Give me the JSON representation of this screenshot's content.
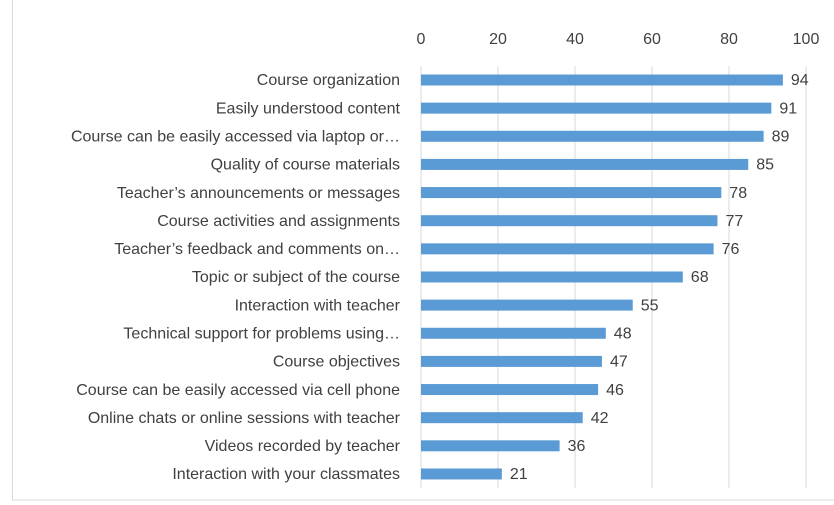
{
  "chart_data": {
    "type": "bar",
    "orientation": "horizontal",
    "categories": [
      "Course organization",
      "Easily understood content",
      "Course can be easily accessed via laptop or…",
      "Quality of course materials",
      "Teacher’s announcements or messages",
      "Course activities and assignments",
      "Teacher’s feedback and comments on…",
      "Topic or subject of the course",
      "Interaction with teacher",
      "Technical support for problems using…",
      "Course objectives",
      "Course can be easily accessed via cell phone",
      "Online chats or online sessions with teacher",
      "Videos recorded by teacher",
      "Interaction with your classmates"
    ],
    "values": [
      94,
      91,
      89,
      85,
      78,
      77,
      76,
      68,
      55,
      48,
      47,
      46,
      42,
      36,
      21
    ],
    "color": "#5b9bd5",
    "xlim": [
      0,
      100
    ],
    "xticks": [
      0,
      20,
      40,
      60,
      80,
      100
    ],
    "grid": true,
    "data_labels": true
  }
}
